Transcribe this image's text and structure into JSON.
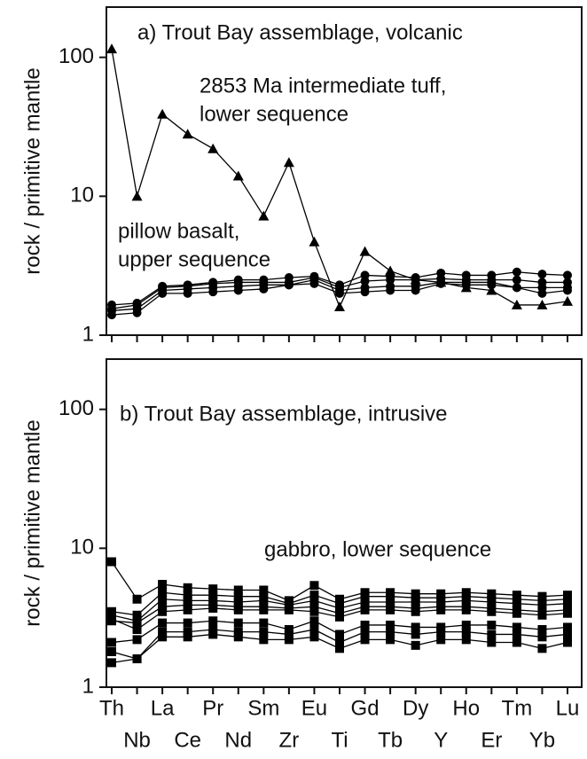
{
  "chart_data": [
    {
      "type": "line",
      "title": "a) Trout Bay assemblage, volcanic",
      "ylabel": "rock / primitive mantle",
      "annotations": [
        "2853 Ma intermediate tuff,",
        "lower sequence",
        "pillow basalt,",
        "upper sequence"
      ],
      "log_y": true,
      "ylim": [
        1,
        230
      ],
      "yticks": [
        1,
        10,
        100
      ],
      "series": [
        {
          "color": "#000000",
          "marker": "triangle",
          "values": [
            115,
            10,
            39,
            28,
            22,
            14,
            7.2,
            17.5,
            4.7,
            1.6,
            4.0,
            2.9,
            2.5,
            2.4,
            2.2,
            2.1,
            1.65,
            1.65,
            1.75
          ]
        },
        {
          "color": "#000000",
          "marker": "circle",
          "values": [
            1.4,
            1.45,
            2.0,
            2.0,
            2.05,
            2.1,
            2.15,
            2.3,
            2.35,
            2.0,
            2.05,
            2.1,
            2.1,
            2.35,
            2.3,
            2.3,
            2.2,
            2.0,
            2.1
          ]
        },
        {
          "color": "#000000",
          "marker": "circle",
          "values": [
            1.5,
            1.55,
            2.1,
            2.15,
            2.2,
            2.25,
            2.3,
            2.3,
            2.5,
            2.1,
            2.2,
            2.25,
            2.25,
            2.4,
            2.4,
            2.4,
            2.2,
            2.2,
            2.2
          ]
        },
        {
          "color": "#000000",
          "marker": "circle",
          "values": [
            1.55,
            1.65,
            2.2,
            2.25,
            2.35,
            2.4,
            2.4,
            2.4,
            2.6,
            2.2,
            2.45,
            2.5,
            2.5,
            2.55,
            2.5,
            2.5,
            2.5,
            2.4,
            2.4
          ]
        },
        {
          "color": "#000000",
          "marker": "circle",
          "values": [
            1.65,
            1.7,
            2.25,
            2.3,
            2.4,
            2.5,
            2.5,
            2.6,
            2.65,
            2.3,
            2.7,
            2.65,
            2.6,
            2.8,
            2.7,
            2.7,
            2.85,
            2.75,
            2.7
          ]
        }
      ]
    },
    {
      "type": "line",
      "title": "b) Trout Bay assemblage, intrusive",
      "ylabel": "rock / primitive mantle",
      "annotations": [
        "gabbro, lower sequence"
      ],
      "categories": [
        "Th",
        "Nb",
        "La",
        "Ce",
        "Pr",
        "Nd",
        "Sm",
        "Zr",
        "Eu",
        "Ti",
        "Gd",
        "Tb",
        "Dy",
        "Y",
        "Ho",
        "Er",
        "Tm",
        "Yb",
        "Lu"
      ],
      "log_y": true,
      "ylim": [
        1,
        230
      ],
      "yticks": [
        1,
        10,
        100
      ],
      "series": [
        {
          "color": "#000000",
          "marker": "square",
          "values": [
            8,
            4.3,
            5.5,
            5.2,
            5.1,
            5.0,
            5.0,
            4.2,
            5.4,
            4.3,
            4.8,
            4.8,
            4.7,
            4.7,
            4.8,
            4.7,
            4.6,
            4.5,
            4.6
          ]
        },
        {
          "color": "#000000",
          "marker": "square",
          "values": [
            3.5,
            3.3,
            4.8,
            4.6,
            4.6,
            4.5,
            4.5,
            4.0,
            4.6,
            4.0,
            4.5,
            4.5,
            4.4,
            4.4,
            4.5,
            4.4,
            4.3,
            4.2,
            4.3
          ]
        },
        {
          "color": "#000000",
          "marker": "square",
          "values": [
            3.3,
            3.0,
            4.3,
            4.2,
            4.2,
            4.1,
            4.2,
            3.9,
            4.2,
            3.7,
            4.1,
            4.1,
            4.1,
            4.1,
            4.2,
            4.1,
            4.0,
            3.9,
            4.0
          ]
        },
        {
          "color": "#000000",
          "marker": "square",
          "values": [
            3.0,
            2.9,
            3.8,
            3.9,
            3.9,
            3.8,
            3.8,
            3.7,
            3.8,
            3.4,
            3.8,
            3.8,
            3.7,
            3.8,
            3.8,
            3.7,
            3.6,
            3.5,
            3.6
          ]
        },
        {
          "color": "#000000",
          "marker": "square",
          "values": [
            3.1,
            2.6,
            3.5,
            3.6,
            3.7,
            3.6,
            3.6,
            3.6,
            3.5,
            3.2,
            3.6,
            3.6,
            3.5,
            3.6,
            3.6,
            3.5,
            3.4,
            3.3,
            3.4
          ]
        },
        {
          "color": "#000000",
          "marker": "square",
          "values": [
            2.1,
            2.2,
            2.9,
            2.9,
            3.0,
            2.9,
            2.9,
            2.6,
            3.0,
            2.4,
            2.8,
            2.8,
            2.7,
            2.7,
            2.8,
            2.8,
            2.7,
            2.6,
            2.7
          ]
        },
        {
          "color": "#000000",
          "marker": "square",
          "values": [
            1.8,
            1.6,
            2.5,
            2.5,
            2.6,
            2.5,
            2.5,
            2.4,
            2.6,
            2.1,
            2.5,
            2.5,
            2.4,
            2.5,
            2.5,
            2.4,
            2.4,
            2.3,
            2.4
          ]
        },
        {
          "color": "#000000",
          "marker": "square",
          "values": [
            1.5,
            1.6,
            2.3,
            2.3,
            2.4,
            2.3,
            2.2,
            2.2,
            2.3,
            1.9,
            2.2,
            2.2,
            2.0,
            2.2,
            2.2,
            2.1,
            2.1,
            1.9,
            2.1
          ]
        }
      ]
    }
  ]
}
